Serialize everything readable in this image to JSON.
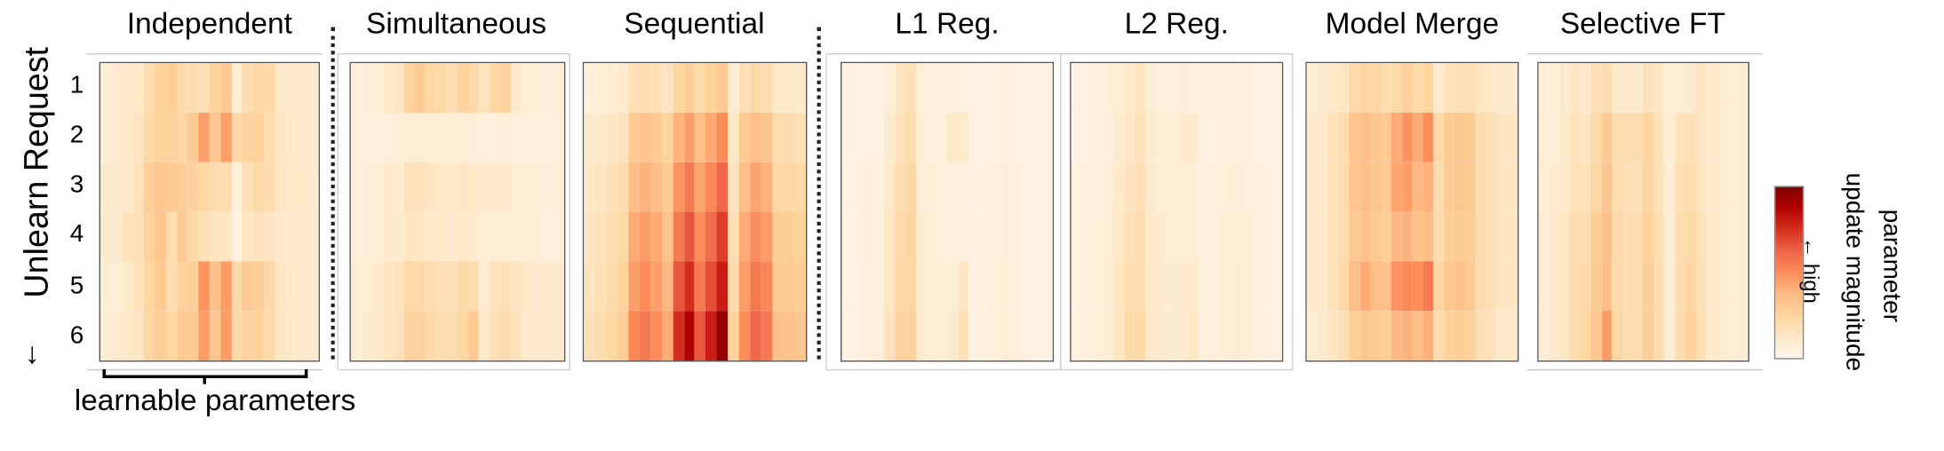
{
  "chart_data": {
    "type": "heatmap",
    "y_axis": {
      "label": "Unlearn Request",
      "arrow": "↓",
      "ticks": [
        "1",
        "2",
        "3",
        "4",
        "5",
        "6"
      ]
    },
    "x_axis": {
      "label": "learnable parameters"
    },
    "colorbar": {
      "label_line1": "parameter",
      "label_line2": "update magnitude",
      "direction_label": "← high",
      "colors": [
        "#fff5eb",
        "#fee8c8",
        "#fdd49e",
        "#fdbb84",
        "#fc8d59",
        "#ef6548",
        "#d7301f",
        "#b30000",
        "#7f0000"
      ]
    },
    "panels": [
      {
        "title": "Independent",
        "values": [
          [
            0.08,
            0.1,
            0.1,
            0.12,
            0.2,
            0.26,
            0.28,
            0.22,
            0.2,
            0.18,
            0.26,
            0.3,
            0.08,
            0.2,
            0.24,
            0.22,
            0.12,
            0.1,
            0.1,
            0.1
          ],
          [
            0.08,
            0.1,
            0.12,
            0.15,
            0.22,
            0.26,
            0.26,
            0.24,
            0.3,
            0.45,
            0.32,
            0.45,
            0.22,
            0.26,
            0.26,
            0.2,
            0.14,
            0.12,
            0.1,
            0.1
          ],
          [
            0.1,
            0.1,
            0.12,
            0.16,
            0.28,
            0.32,
            0.3,
            0.28,
            0.26,
            0.24,
            0.2,
            0.2,
            0.06,
            0.18,
            0.22,
            0.2,
            0.14,
            0.12,
            0.12,
            0.1
          ],
          [
            0.1,
            0.1,
            0.16,
            0.18,
            0.26,
            0.32,
            0.2,
            0.3,
            0.22,
            0.18,
            0.14,
            0.14,
            0.04,
            0.14,
            0.16,
            0.14,
            0.12,
            0.1,
            0.1,
            0.1
          ],
          [
            0.08,
            0.08,
            0.12,
            0.16,
            0.24,
            0.3,
            0.2,
            0.26,
            0.28,
            0.48,
            0.34,
            0.46,
            0.22,
            0.3,
            0.28,
            0.22,
            0.14,
            0.12,
            0.1,
            0.1
          ],
          [
            0.08,
            0.1,
            0.12,
            0.14,
            0.24,
            0.28,
            0.24,
            0.3,
            0.3,
            0.46,
            0.32,
            0.46,
            0.22,
            0.26,
            0.26,
            0.22,
            0.14,
            0.12,
            0.1,
            0.1
          ]
        ]
      },
      {
        "title": "Simultaneous",
        "values": [
          [
            0.06,
            0.07,
            0.08,
            0.12,
            0.14,
            0.26,
            0.3,
            0.24,
            0.22,
            0.2,
            0.26,
            0.22,
            0.16,
            0.24,
            0.26,
            0.1,
            0.08,
            0.07,
            0.07,
            0.07
          ],
          [
            0.05,
            0.05,
            0.06,
            0.06,
            0.07,
            0.08,
            0.08,
            0.08,
            0.07,
            0.07,
            0.08,
            0.07,
            0.06,
            0.06,
            0.07,
            0.05,
            0.05,
            0.05,
            0.05,
            0.05
          ],
          [
            0.06,
            0.07,
            0.08,
            0.1,
            0.1,
            0.16,
            0.16,
            0.14,
            0.12,
            0.12,
            0.14,
            0.12,
            0.1,
            0.1,
            0.1,
            0.08,
            0.08,
            0.07,
            0.07,
            0.07
          ],
          [
            0.06,
            0.07,
            0.08,
            0.1,
            0.1,
            0.14,
            0.14,
            0.12,
            0.12,
            0.1,
            0.12,
            0.1,
            0.08,
            0.08,
            0.09,
            0.08,
            0.07,
            0.07,
            0.06,
            0.06
          ],
          [
            0.08,
            0.08,
            0.1,
            0.14,
            0.16,
            0.22,
            0.22,
            0.2,
            0.18,
            0.18,
            0.22,
            0.2,
            0.1,
            0.16,
            0.18,
            0.14,
            0.12,
            0.1,
            0.1,
            0.1
          ],
          [
            0.08,
            0.09,
            0.1,
            0.14,
            0.16,
            0.26,
            0.26,
            0.22,
            0.2,
            0.2,
            0.24,
            0.3,
            0.12,
            0.18,
            0.2,
            0.16,
            0.12,
            0.1,
            0.1,
            0.1
          ]
        ]
      },
      {
        "title": "Sequential",
        "values": [
          [
            0.06,
            0.07,
            0.09,
            0.1,
            0.18,
            0.2,
            0.18,
            0.15,
            0.24,
            0.28,
            0.22,
            0.26,
            0.3,
            0.08,
            0.18,
            0.22,
            0.2,
            0.12,
            0.12,
            0.11
          ],
          [
            0.1,
            0.12,
            0.14,
            0.16,
            0.3,
            0.33,
            0.3,
            0.25,
            0.4,
            0.46,
            0.36,
            0.42,
            0.5,
            0.13,
            0.3,
            0.36,
            0.33,
            0.2,
            0.2,
            0.18
          ],
          [
            0.12,
            0.14,
            0.18,
            0.2,
            0.36,
            0.4,
            0.36,
            0.3,
            0.48,
            0.56,
            0.44,
            0.52,
            0.62,
            0.16,
            0.36,
            0.44,
            0.4,
            0.24,
            0.24,
            0.22
          ],
          [
            0.14,
            0.16,
            0.2,
            0.22,
            0.42,
            0.46,
            0.42,
            0.34,
            0.56,
            0.66,
            0.5,
            0.6,
            0.72,
            0.18,
            0.42,
            0.5,
            0.46,
            0.28,
            0.28,
            0.26
          ],
          [
            0.15,
            0.18,
            0.22,
            0.25,
            0.45,
            0.5,
            0.45,
            0.38,
            0.66,
            0.76,
            0.56,
            0.68,
            0.8,
            0.2,
            0.46,
            0.56,
            0.52,
            0.3,
            0.3,
            0.28
          ],
          [
            0.17,
            0.2,
            0.24,
            0.28,
            0.52,
            0.56,
            0.5,
            0.42,
            0.76,
            0.88,
            0.66,
            0.8,
            0.95,
            0.26,
            0.5,
            0.62,
            0.56,
            0.34,
            0.34,
            0.32
          ]
        ]
      },
      {
        "title": "L1 Reg.",
        "values": [
          [
            0.02,
            0.03,
            0.04,
            0.04,
            0.08,
            0.14,
            0.18,
            0.06,
            0.05,
            0.04,
            0.05,
            0.04,
            0.04,
            0.03,
            0.03,
            0.05,
            0.04,
            0.03,
            0.02,
            0.03
          ],
          [
            0.02,
            0.03,
            0.04,
            0.04,
            0.1,
            0.16,
            0.2,
            0.08,
            0.06,
            0.06,
            0.12,
            0.12,
            0.03,
            0.03,
            0.03,
            0.05,
            0.04,
            0.03,
            0.02,
            0.03
          ],
          [
            0.03,
            0.04,
            0.06,
            0.05,
            0.12,
            0.2,
            0.22,
            0.08,
            0.07,
            0.06,
            0.06,
            0.06,
            0.04,
            0.04,
            0.06,
            0.07,
            0.06,
            0.04,
            0.03,
            0.03
          ],
          [
            0.03,
            0.04,
            0.06,
            0.06,
            0.14,
            0.22,
            0.24,
            0.1,
            0.08,
            0.06,
            0.06,
            0.06,
            0.04,
            0.04,
            0.06,
            0.07,
            0.06,
            0.04,
            0.03,
            0.03
          ],
          [
            0.03,
            0.04,
            0.05,
            0.06,
            0.14,
            0.24,
            0.24,
            0.1,
            0.08,
            0.07,
            0.08,
            0.14,
            0.04,
            0.04,
            0.06,
            0.08,
            0.06,
            0.04,
            0.03,
            0.03
          ],
          [
            0.03,
            0.04,
            0.05,
            0.06,
            0.16,
            0.26,
            0.26,
            0.1,
            0.08,
            0.07,
            0.1,
            0.18,
            0.04,
            0.04,
            0.06,
            0.08,
            0.06,
            0.04,
            0.03,
            0.03
          ]
        ]
      },
      {
        "title": "L2 Reg.",
        "values": [
          [
            0.03,
            0.04,
            0.05,
            0.06,
            0.08,
            0.12,
            0.14,
            0.08,
            0.06,
            0.06,
            0.07,
            0.06,
            0.05,
            0.04,
            0.05,
            0.06,
            0.05,
            0.04,
            0.03,
            0.03
          ],
          [
            0.03,
            0.04,
            0.05,
            0.06,
            0.1,
            0.14,
            0.16,
            0.1,
            0.08,
            0.08,
            0.1,
            0.1,
            0.04,
            0.04,
            0.05,
            0.06,
            0.05,
            0.04,
            0.03,
            0.03
          ],
          [
            0.04,
            0.05,
            0.06,
            0.07,
            0.12,
            0.16,
            0.18,
            0.1,
            0.08,
            0.08,
            0.08,
            0.08,
            0.05,
            0.05,
            0.06,
            0.08,
            0.06,
            0.05,
            0.04,
            0.04
          ],
          [
            0.04,
            0.05,
            0.06,
            0.08,
            0.12,
            0.18,
            0.2,
            0.12,
            0.1,
            0.08,
            0.08,
            0.08,
            0.05,
            0.05,
            0.07,
            0.08,
            0.07,
            0.05,
            0.04,
            0.04
          ],
          [
            0.04,
            0.05,
            0.06,
            0.08,
            0.14,
            0.2,
            0.2,
            0.12,
            0.1,
            0.09,
            0.1,
            0.12,
            0.05,
            0.05,
            0.07,
            0.09,
            0.07,
            0.05,
            0.04,
            0.04
          ],
          [
            0.04,
            0.05,
            0.06,
            0.08,
            0.14,
            0.22,
            0.22,
            0.12,
            0.1,
            0.09,
            0.1,
            0.14,
            0.05,
            0.05,
            0.07,
            0.09,
            0.07,
            0.05,
            0.04,
            0.04
          ]
        ]
      },
      {
        "title": "Model Merge",
        "values": [
          [
            0.08,
            0.1,
            0.12,
            0.14,
            0.22,
            0.24,
            0.24,
            0.2,
            0.22,
            0.26,
            0.22,
            0.24,
            0.1,
            0.16,
            0.18,
            0.18,
            0.14,
            0.12,
            0.1,
            0.1
          ],
          [
            0.1,
            0.12,
            0.16,
            0.2,
            0.32,
            0.36,
            0.32,
            0.3,
            0.42,
            0.48,
            0.42,
            0.5,
            0.22,
            0.3,
            0.32,
            0.3,
            0.2,
            0.18,
            0.14,
            0.14
          ],
          [
            0.1,
            0.12,
            0.16,
            0.2,
            0.32,
            0.36,
            0.32,
            0.3,
            0.44,
            0.46,
            0.38,
            0.4,
            0.2,
            0.3,
            0.32,
            0.3,
            0.2,
            0.18,
            0.14,
            0.14
          ],
          [
            0.1,
            0.12,
            0.16,
            0.2,
            0.3,
            0.34,
            0.3,
            0.28,
            0.38,
            0.4,
            0.34,
            0.36,
            0.2,
            0.28,
            0.3,
            0.28,
            0.2,
            0.18,
            0.14,
            0.14
          ],
          [
            0.1,
            0.12,
            0.16,
            0.22,
            0.36,
            0.42,
            0.36,
            0.34,
            0.48,
            0.52,
            0.5,
            0.56,
            0.24,
            0.32,
            0.34,
            0.3,
            0.2,
            0.18,
            0.14,
            0.14
          ],
          [
            0.08,
            0.1,
            0.14,
            0.18,
            0.28,
            0.32,
            0.3,
            0.28,
            0.38,
            0.4,
            0.36,
            0.4,
            0.2,
            0.26,
            0.28,
            0.26,
            0.18,
            0.16,
            0.12,
            0.12
          ]
        ]
      },
      {
        "title": "Selective FT",
        "values": [
          [
            0.06,
            0.08,
            0.1,
            0.14,
            0.1,
            0.18,
            0.2,
            0.12,
            0.1,
            0.1,
            0.16,
            0.14,
            0.08,
            0.08,
            0.1,
            0.14,
            0.12,
            0.1,
            0.08,
            0.08
          ],
          [
            0.07,
            0.08,
            0.12,
            0.16,
            0.14,
            0.22,
            0.3,
            0.2,
            0.2,
            0.2,
            0.24,
            0.16,
            0.08,
            0.16,
            0.18,
            0.14,
            0.12,
            0.1,
            0.08,
            0.08
          ],
          [
            0.07,
            0.09,
            0.12,
            0.16,
            0.16,
            0.24,
            0.32,
            0.2,
            0.18,
            0.18,
            0.24,
            0.16,
            0.08,
            0.18,
            0.2,
            0.14,
            0.12,
            0.1,
            0.08,
            0.08
          ],
          [
            0.08,
            0.1,
            0.14,
            0.2,
            0.2,
            0.28,
            0.34,
            0.22,
            0.2,
            0.2,
            0.26,
            0.18,
            0.08,
            0.2,
            0.22,
            0.16,
            0.12,
            0.1,
            0.08,
            0.08
          ],
          [
            0.08,
            0.1,
            0.14,
            0.2,
            0.22,
            0.3,
            0.36,
            0.22,
            0.2,
            0.2,
            0.28,
            0.2,
            0.08,
            0.2,
            0.24,
            0.18,
            0.12,
            0.1,
            0.08,
            0.08
          ],
          [
            0.08,
            0.1,
            0.14,
            0.2,
            0.24,
            0.32,
            0.46,
            0.24,
            0.2,
            0.2,
            0.28,
            0.2,
            0.08,
            0.2,
            0.26,
            0.18,
            0.12,
            0.1,
            0.08,
            0.08
          ]
        ]
      }
    ]
  }
}
